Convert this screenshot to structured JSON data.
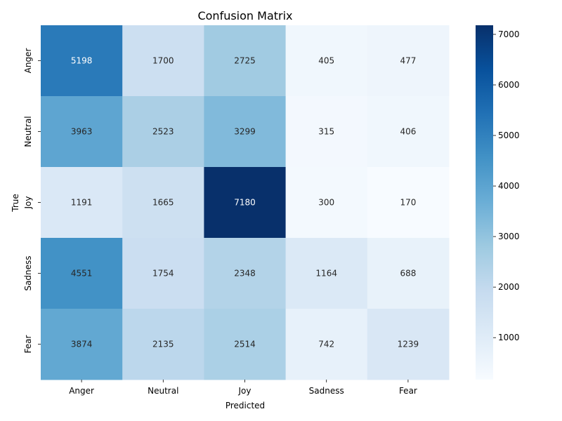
{
  "chart_data": {
    "type": "heatmap",
    "title": "Confusion Matrix",
    "xlabel": "Predicted",
    "ylabel": "True",
    "x_categories": [
      "Anger",
      "Neutral",
      "Joy",
      "Sadness",
      "Fear"
    ],
    "y_categories": [
      "Anger",
      "Neutral",
      "Joy",
      "Sadness",
      "Fear"
    ],
    "values": [
      [
        5198,
        1700,
        2725,
        405,
        477
      ],
      [
        3963,
        2523,
        3299,
        315,
        406
      ],
      [
        1191,
        1665,
        7180,
        300,
        170
      ],
      [
        4551,
        1754,
        2348,
        1164,
        688
      ],
      [
        3874,
        2135,
        2514,
        742,
        1239
      ]
    ],
    "colormap": "Blues",
    "value_range": [
      170,
      7180
    ],
    "colorbar_ticks": [
      1000,
      2000,
      3000,
      4000,
      5000,
      6000,
      7000
    ],
    "colorbar_tick_labels": [
      "1000",
      "2000",
      "3000",
      "4000",
      "5000",
      "6000",
      "7000"
    ],
    "grid": false,
    "annotated": true
  }
}
